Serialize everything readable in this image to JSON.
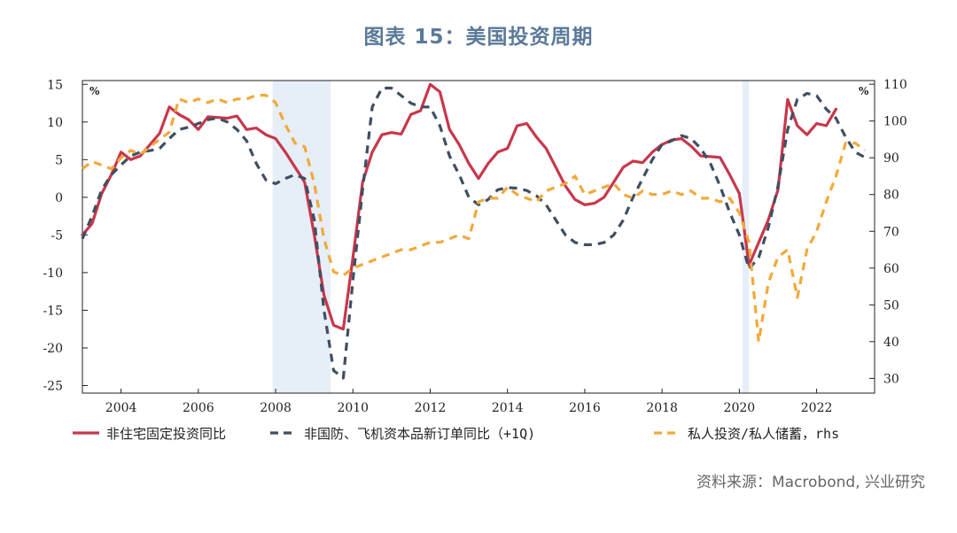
{
  "title": "图表 15：美国投资周期",
  "source": "资料来源：Macrobond, 兴业研究",
  "colors": {
    "residential": "#c8374b",
    "aircraft": "#3f4f62",
    "private": "#f2a93b",
    "recession": "#e6eef7",
    "title": "#5b7a99"
  },
  "chart_data": {
    "type": "line",
    "title": "",
    "left_axis": {
      "unit": "%",
      "range": [
        -26,
        15.5
      ],
      "ticks": [
        15,
        10,
        5,
        0,
        -5,
        -10,
        -15,
        -20,
        -25
      ],
      "tick_labels": [
        "15",
        "10",
        "5",
        "0",
        "-5",
        "-10",
        "-15",
        "-20",
        "-25"
      ]
    },
    "right_axis": {
      "unit": "%",
      "range": [
        26,
        111
      ],
      "ticks": [
        110,
        100,
        90,
        80,
        70,
        60,
        50,
        40,
        30
      ],
      "tick_labels": [
        "110",
        "100",
        "90",
        "80",
        "70",
        "60",
        "50",
        "40",
        "30"
      ]
    },
    "x_axis": {
      "range": [
        2003,
        2023.5
      ],
      "ticks": [
        2004,
        2006,
        2008,
        2010,
        2012,
        2014,
        2016,
        2018,
        2020,
        2022
      ],
      "tick_labels": [
        "2004",
        "2006",
        "2008",
        "2010",
        "2012",
        "2014",
        "2016",
        "2018",
        "2020",
        "2022"
      ]
    },
    "recessions": [
      [
        2007.92,
        2009.42
      ],
      [
        2020.08,
        2020.25
      ]
    ],
    "grid": false,
    "legend_position": "bottom",
    "series": [
      {
        "name": "非住宅固定投资同比",
        "axis": "left",
        "style": "solid",
        "color": "#c8374b",
        "points": [
          [
            2003.0,
            -5
          ],
          [
            2003.25,
            -3.5
          ],
          [
            2003.5,
            0.5
          ],
          [
            2003.75,
            3
          ],
          [
            2004.0,
            6
          ],
          [
            2004.25,
            5
          ],
          [
            2004.5,
            5.5
          ],
          [
            2004.75,
            7
          ],
          [
            2005.0,
            8.5
          ],
          [
            2005.25,
            12
          ],
          [
            2005.5,
            11
          ],
          [
            2005.75,
            10.3
          ],
          [
            2006.0,
            9
          ],
          [
            2006.25,
            10.7
          ],
          [
            2006.5,
            10.6
          ],
          [
            2006.75,
            10.5
          ],
          [
            2007.0,
            10.8
          ],
          [
            2007.25,
            9
          ],
          [
            2007.5,
            9.2
          ],
          [
            2007.75,
            8.3
          ],
          [
            2008.0,
            7.8
          ],
          [
            2008.25,
            6
          ],
          [
            2008.5,
            4
          ],
          [
            2008.75,
            2
          ],
          [
            2009.0,
            -5
          ],
          [
            2009.25,
            -13
          ],
          [
            2009.5,
            -17
          ],
          [
            2009.75,
            -17.5
          ],
          [
            2010.0,
            -8
          ],
          [
            2010.25,
            2
          ],
          [
            2010.5,
            6
          ],
          [
            2010.75,
            8.3
          ],
          [
            2011.0,
            8.6
          ],
          [
            2011.25,
            8.4
          ],
          [
            2011.5,
            11
          ],
          [
            2011.75,
            11.5
          ],
          [
            2012.0,
            15
          ],
          [
            2012.25,
            14
          ],
          [
            2012.5,
            9
          ],
          [
            2012.75,
            7
          ],
          [
            2013.0,
            4.5
          ],
          [
            2013.25,
            2.5
          ],
          [
            2013.5,
            4.5
          ],
          [
            2013.75,
            6
          ],
          [
            2014.0,
            6.5
          ],
          [
            2014.25,
            9.5
          ],
          [
            2014.5,
            9.8
          ],
          [
            2014.75,
            8
          ],
          [
            2015.0,
            6.5
          ],
          [
            2015.25,
            4
          ],
          [
            2015.5,
            1.5
          ],
          [
            2015.75,
            -0.3
          ],
          [
            2016.0,
            -1
          ],
          [
            2016.25,
            -0.8
          ],
          [
            2016.5,
            0
          ],
          [
            2016.75,
            2
          ],
          [
            2017.0,
            4
          ],
          [
            2017.25,
            4.8
          ],
          [
            2017.5,
            4.6
          ],
          [
            2017.75,
            6
          ],
          [
            2018.0,
            7
          ],
          [
            2018.25,
            7.6
          ],
          [
            2018.5,
            7.8
          ],
          [
            2018.75,
            6.8
          ],
          [
            2019.0,
            5.5
          ],
          [
            2019.25,
            5.4
          ],
          [
            2019.5,
            5.3
          ],
          [
            2019.75,
            3
          ],
          [
            2020.0,
            0.5
          ],
          [
            2020.25,
            -9
          ],
          [
            2020.5,
            -6
          ],
          [
            2020.75,
            -3
          ],
          [
            2021.0,
            1
          ],
          [
            2021.25,
            13
          ],
          [
            2021.5,
            9.5
          ],
          [
            2021.75,
            8.3
          ],
          [
            2022.0,
            9.8
          ],
          [
            2022.25,
            9.5
          ],
          [
            2022.5,
            11.7
          ]
        ]
      },
      {
        "name": "非国防、飞机资本品新订单同比（+1Q)",
        "axis": "left",
        "style": "dashed",
        "color": "#3f4f62",
        "points": [
          [
            2003.0,
            -5.5
          ],
          [
            2003.25,
            -2.5
          ],
          [
            2003.5,
            1
          ],
          [
            2003.75,
            3
          ],
          [
            2004.0,
            4.3
          ],
          [
            2004.25,
            5.5
          ],
          [
            2004.5,
            6
          ],
          [
            2004.75,
            6.2
          ],
          [
            2005.0,
            6.5
          ],
          [
            2005.25,
            7.8
          ],
          [
            2005.5,
            9
          ],
          [
            2005.75,
            9.3
          ],
          [
            2006.0,
            9.8
          ],
          [
            2006.25,
            10.3
          ],
          [
            2006.5,
            10.5
          ],
          [
            2006.75,
            10
          ],
          [
            2007.0,
            9
          ],
          [
            2007.25,
            7.5
          ],
          [
            2007.5,
            4.5
          ],
          [
            2007.75,
            2.3
          ],
          [
            2008.0,
            1.8
          ],
          [
            2008.25,
            2.5
          ],
          [
            2008.5,
            3
          ],
          [
            2008.75,
            2.5
          ],
          [
            2009.0,
            -3
          ],
          [
            2009.25,
            -15
          ],
          [
            2009.5,
            -23
          ],
          [
            2009.75,
            -24
          ],
          [
            2010.0,
            -11
          ],
          [
            2010.25,
            1
          ],
          [
            2010.5,
            12
          ],
          [
            2010.75,
            14.5
          ],
          [
            2011.0,
            14.5
          ],
          [
            2011.25,
            13.5
          ],
          [
            2011.5,
            12.5
          ],
          [
            2011.75,
            12
          ],
          [
            2012.0,
            12
          ],
          [
            2012.25,
            9.5
          ],
          [
            2012.5,
            5.5
          ],
          [
            2012.75,
            3
          ],
          [
            2013.0,
            0
          ],
          [
            2013.25,
            -1
          ],
          [
            2013.5,
            -0.3
          ],
          [
            2013.75,
            1
          ],
          [
            2014.0,
            1.3
          ],
          [
            2014.25,
            1.2
          ],
          [
            2014.5,
            0.9
          ],
          [
            2014.75,
            0.2
          ],
          [
            2015.0,
            -1
          ],
          [
            2015.25,
            -3
          ],
          [
            2015.5,
            -5
          ],
          [
            2015.75,
            -6
          ],
          [
            2016.0,
            -6.3
          ],
          [
            2016.25,
            -6.3
          ],
          [
            2016.5,
            -6
          ],
          [
            2016.75,
            -5
          ],
          [
            2017.0,
            -3
          ],
          [
            2017.25,
            0
          ],
          [
            2017.5,
            2.5
          ],
          [
            2017.75,
            5
          ],
          [
            2018.0,
            7
          ],
          [
            2018.25,
            7.5
          ],
          [
            2018.5,
            8.2
          ],
          [
            2018.75,
            7.8
          ],
          [
            2019.0,
            6.5
          ],
          [
            2019.25,
            4.5
          ],
          [
            2019.5,
            1.5
          ],
          [
            2019.75,
            -2
          ],
          [
            2020.0,
            -5
          ],
          [
            2020.25,
            -9.5
          ],
          [
            2020.5,
            -8
          ],
          [
            2020.75,
            -4
          ],
          [
            2021.0,
            1.5
          ],
          [
            2021.25,
            9
          ],
          [
            2021.5,
            13
          ],
          [
            2021.75,
            13.8
          ],
          [
            2022.0,
            13.5
          ],
          [
            2022.25,
            11.7
          ],
          [
            2022.5,
            10.5
          ],
          [
            2022.75,
            8
          ],
          [
            2023.0,
            6
          ],
          [
            2023.25,
            5.3
          ]
        ]
      },
      {
        "name": "私人投资/私人储蓄，rhs",
        "axis": "right",
        "style": "dashed",
        "color": "#f2a93b",
        "points": [
          [
            2003.0,
            87
          ],
          [
            2003.25,
            89
          ],
          [
            2003.5,
            88
          ],
          [
            2003.75,
            87
          ],
          [
            2004.0,
            90
          ],
          [
            2004.25,
            92
          ],
          [
            2004.5,
            91
          ],
          [
            2004.75,
            93
          ],
          [
            2005.0,
            95
          ],
          [
            2005.25,
            97
          ],
          [
            2005.5,
            106
          ],
          [
            2005.75,
            105
          ],
          [
            2006.0,
            106
          ],
          [
            2006.25,
            105
          ],
          [
            2006.5,
            106
          ],
          [
            2006.75,
            105
          ],
          [
            2007.0,
            106
          ],
          [
            2007.25,
            106
          ],
          [
            2007.5,
            107
          ],
          [
            2007.75,
            107
          ],
          [
            2008.0,
            105
          ],
          [
            2008.25,
            99
          ],
          [
            2008.5,
            94
          ],
          [
            2008.75,
            93
          ],
          [
            2009.0,
            83
          ],
          [
            2009.25,
            68
          ],
          [
            2009.5,
            59
          ],
          [
            2009.75,
            58
          ],
          [
            2010.0,
            60
          ],
          [
            2010.25,
            61
          ],
          [
            2010.5,
            62
          ],
          [
            2010.75,
            63
          ],
          [
            2011.0,
            64
          ],
          [
            2011.25,
            65
          ],
          [
            2011.5,
            65
          ],
          [
            2011.75,
            66
          ],
          [
            2012.0,
            67
          ],
          [
            2012.25,
            67
          ],
          [
            2012.5,
            68
          ],
          [
            2012.75,
            69
          ],
          [
            2013.0,
            68
          ],
          [
            2013.25,
            78
          ],
          [
            2013.5,
            79
          ],
          [
            2013.75,
            79
          ],
          [
            2014.0,
            82
          ],
          [
            2014.25,
            80
          ],
          [
            2014.5,
            79
          ],
          [
            2014.75,
            78
          ],
          [
            2015.0,
            81
          ],
          [
            2015.25,
            82
          ],
          [
            2015.5,
            83
          ],
          [
            2015.75,
            85
          ],
          [
            2016.0,
            80
          ],
          [
            2016.25,
            81
          ],
          [
            2016.5,
            82
          ],
          [
            2016.75,
            83
          ],
          [
            2017.0,
            80
          ],
          [
            2017.25,
            79
          ],
          [
            2017.5,
            81
          ],
          [
            2017.75,
            80
          ],
          [
            2018.0,
            80
          ],
          [
            2018.25,
            81
          ],
          [
            2018.5,
            80
          ],
          [
            2018.75,
            81
          ],
          [
            2019.0,
            79
          ],
          [
            2019.25,
            79
          ],
          [
            2019.5,
            78
          ],
          [
            2019.75,
            79
          ],
          [
            2020.0,
            75
          ],
          [
            2020.25,
            67
          ],
          [
            2020.5,
            40
          ],
          [
            2020.75,
            56
          ],
          [
            2021.0,
            63
          ],
          [
            2021.25,
            65
          ],
          [
            2021.5,
            52
          ],
          [
            2021.75,
            65
          ],
          [
            2022.0,
            70
          ],
          [
            2022.25,
            78
          ],
          [
            2022.5,
            85
          ],
          [
            2022.75,
            94
          ],
          [
            2023.0,
            94
          ],
          [
            2023.25,
            92
          ]
        ]
      }
    ]
  }
}
